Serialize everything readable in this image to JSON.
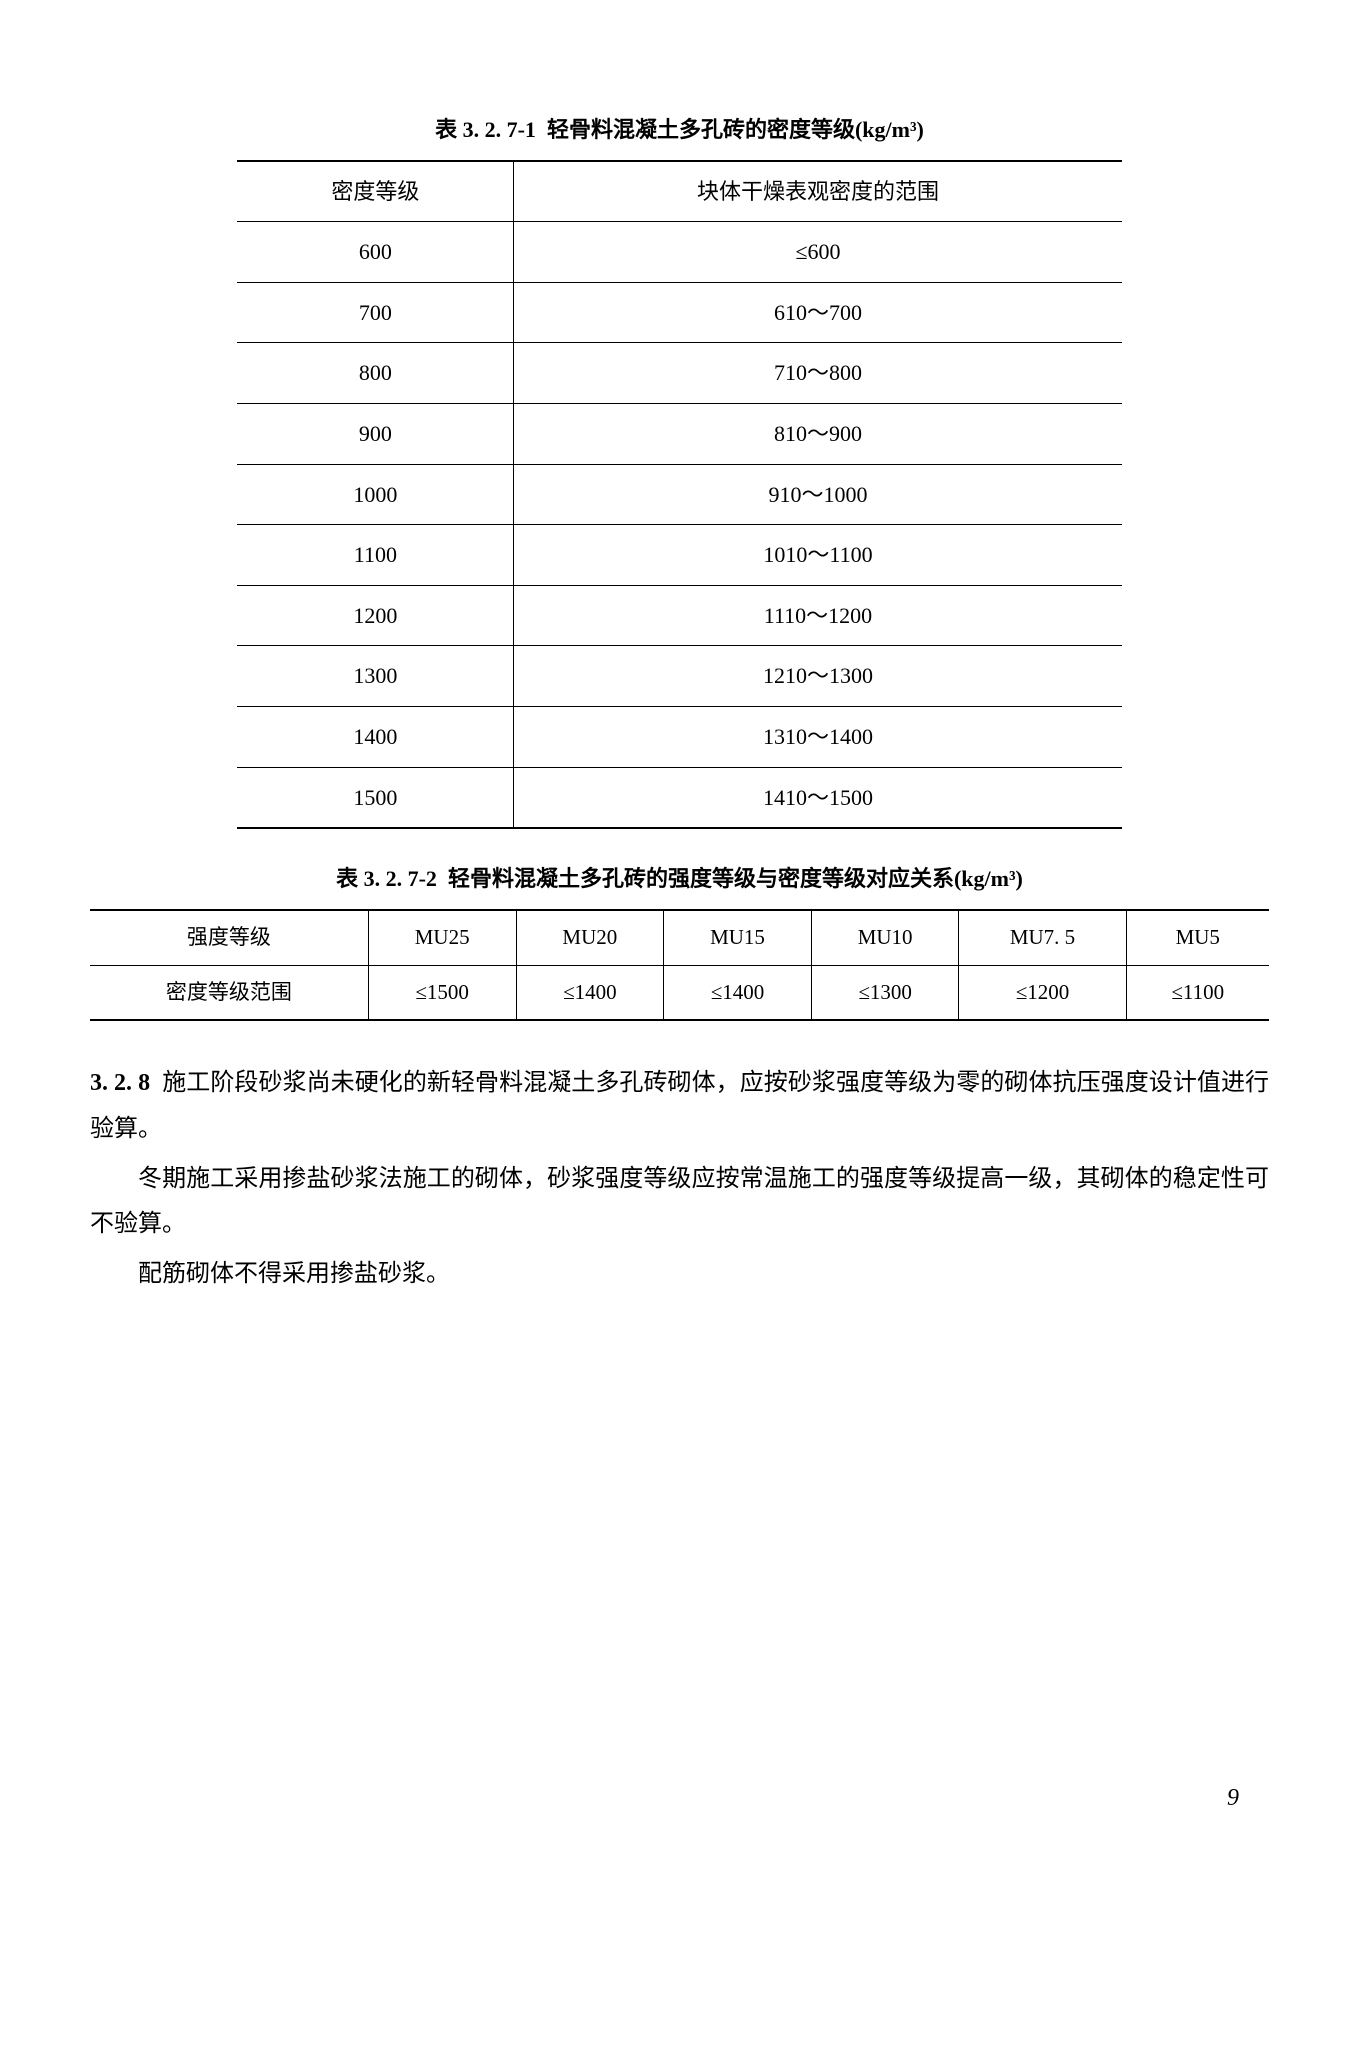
{
  "table1": {
    "caption_prefix": "表 3. 2. 7-1",
    "caption_title": "轻骨料混凝土多孔砖的密度等级(kg/m³)",
    "headers": [
      "密度等级",
      "块体干燥表观密度的范围"
    ],
    "rows": [
      [
        "600",
        "≤600"
      ],
      [
        "700",
        "610～700"
      ],
      [
        "800",
        "710～800"
      ],
      [
        "900",
        "810～900"
      ],
      [
        "1000",
        "910～1000"
      ],
      [
        "1100",
        "1010～1100"
      ],
      [
        "1200",
        "1110～1200"
      ],
      [
        "1300",
        "1210～1300"
      ],
      [
        "1400",
        "1310～1400"
      ],
      [
        "1500",
        "1410～1500"
      ]
    ]
  },
  "table2": {
    "caption_prefix": "表 3. 2. 7-2",
    "caption_title": "轻骨料混凝土多孔砖的强度等级与密度等级对应关系(kg/m³)",
    "row_headers": [
      "强度等级",
      "密度等级范围"
    ],
    "cols": [
      "MU25",
      "MU20",
      "MU15",
      "MU10",
      "MU7. 5",
      "MU5"
    ],
    "values": [
      "≤1500",
      "≤1400",
      "≤1400",
      "≤1300",
      "≤1200",
      "≤1100"
    ]
  },
  "body": {
    "section_num": "3. 2. 8",
    "p1": "施工阶段砂浆尚未硬化的新轻骨料混凝土多孔砖砌体，应按砂浆强度等级为零的砌体抗压强度设计值进行验算。",
    "p2": "冬期施工采用掺盐砂浆法施工的砌体，砂浆强度等级应按常温施工的强度等级提高一级，其砌体的稳定性可不验算。",
    "p3": "配筋砌体不得采用掺盐砂浆。"
  },
  "page_number": "9"
}
